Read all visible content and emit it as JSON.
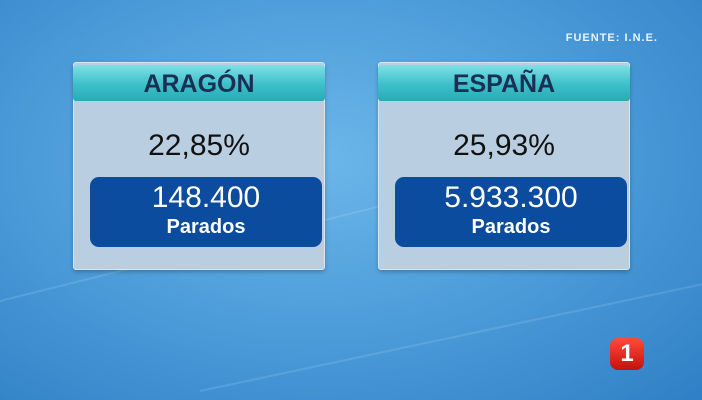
{
  "source": "FUENTE: I.N.E.",
  "panels": [
    {
      "title": "ARAGÓN",
      "rate": "22,85%",
      "count": "148.400",
      "count_label": "Parados"
    },
    {
      "title": "ESPAÑA",
      "rate": "25,93%",
      "count": "5.933.300",
      "count_label": "Parados"
    }
  ],
  "logo": "1"
}
